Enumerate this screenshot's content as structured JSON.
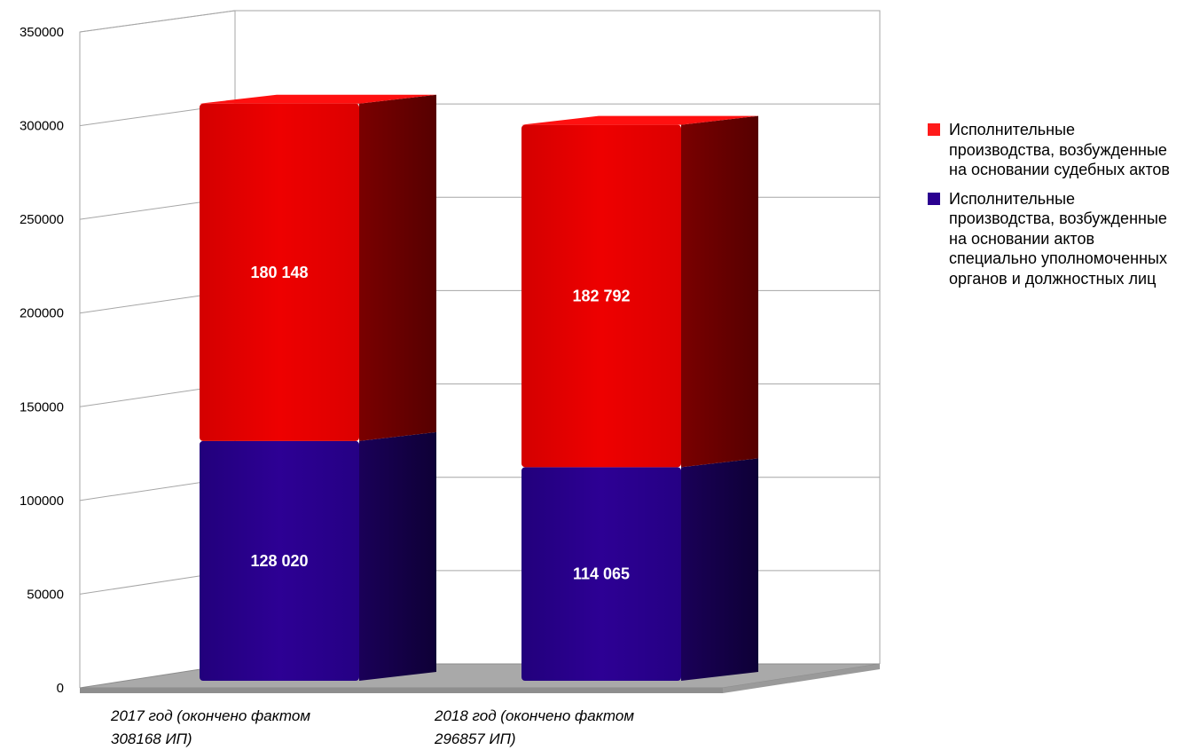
{
  "chart_data": {
    "type": "bar",
    "stacked": true,
    "three_d": true,
    "categories": [
      "2017 год (окончено фактом 308168 ИП)",
      "2018 год (окончено фактом 296857 ИП)"
    ],
    "category_lines": [
      [
        "2017 год (окончено фактом",
        "308168 ИП)"
      ],
      [
        "2018 год (окончено фактом",
        "296857 ИП)"
      ]
    ],
    "series": [
      {
        "name": "Исполнительные производства, возбужденные на основании актов специально уполномоченных органов и должностных лиц",
        "values": [
          128020,
          114065
        ],
        "labels": [
          "128 020",
          "114 065"
        ],
        "color": "#2a0090"
      },
      {
        "name": "Исполнительные производства, возбужденные на основании судебных актов",
        "values": [
          180148,
          182792
        ],
        "labels": [
          "180 148",
          "182 792"
        ],
        "color": "#e60000"
      }
    ],
    "yticks": [
      "0",
      "50000",
      "100000",
      "150000",
      "200000",
      "250000",
      "300000",
      "350000"
    ],
    "ylim": [
      0,
      350000
    ],
    "grid": true,
    "legend_position": "right",
    "title": "",
    "xlabel": "",
    "ylabel": ""
  },
  "legend": {
    "items": [
      {
        "label": "Исполнительные производства, возбужденные на основании судебных актов",
        "color": "#ff1a1a"
      },
      {
        "label": "Исполнительные производства, возбужденные на основании актов специально уполномоченных органов и должностных лиц",
        "color": "#2a0090"
      }
    ]
  }
}
